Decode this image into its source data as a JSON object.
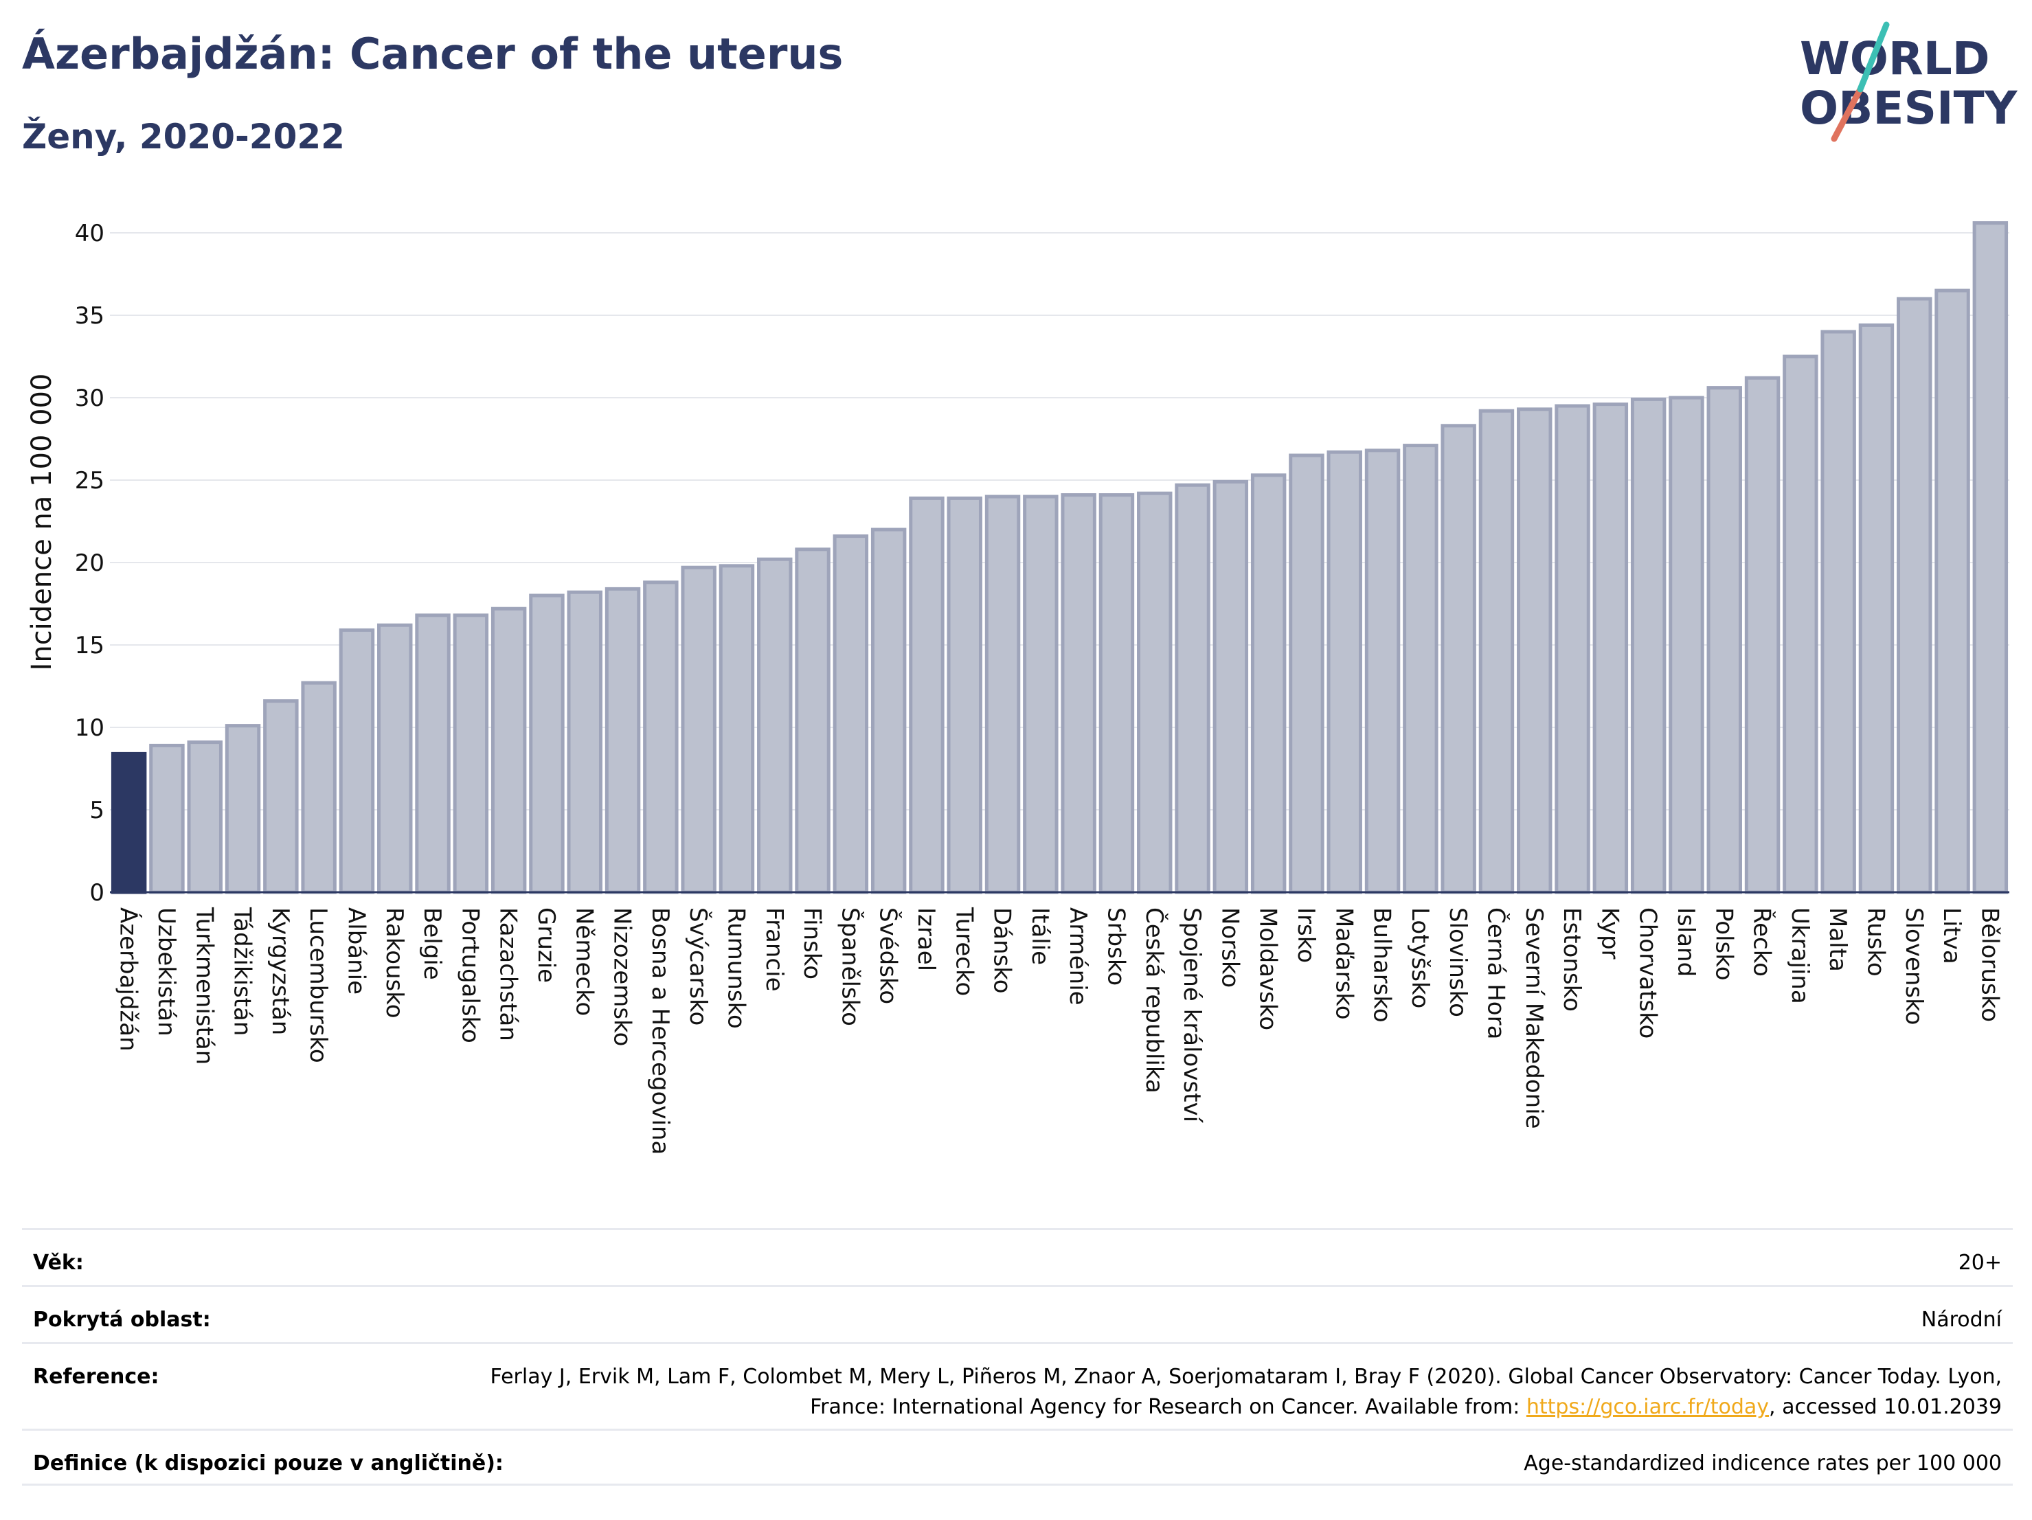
{
  "title": "Ázerbajdžán: Cancer of the uterus",
  "subtitle": "Ženy, 2020-2022",
  "logo": {
    "line1": "WORLD",
    "line2": "OBESITY"
  },
  "colors": {
    "highlight": "#2c3863",
    "bar": "#bcc1cf",
    "bar_border": "#9ea4ba",
    "title": "#2c3863",
    "grid": "#e5e7ec",
    "link": "#f0a91b"
  },
  "chart_data": {
    "type": "bar",
    "ylabel": "Incidence na 100 000",
    "xlabel": "",
    "ylim": [
      0,
      42
    ],
    "yticks": [
      0,
      5,
      10,
      15,
      20,
      25,
      30,
      35,
      40
    ],
    "grid": true,
    "highlight": "Ázerbajdžán",
    "categories": [
      "Ázerbajdžán",
      "Uzbekistán",
      "Turkmenistán",
      "Tádžikistán",
      "Kyrgyzstán",
      "Lucembursko",
      "Albánie",
      "Rakousko",
      "Belgie",
      "Portugalsko",
      "Kazachstán",
      "Gruzie",
      "Německo",
      "Nizozemsko",
      "Bosna a Hercegovina",
      "Švýcarsko",
      "Rumunsko",
      "Francie",
      "Finsko",
      "Španělsko",
      "Švédsko",
      "Izrael",
      "Turecko",
      "Dánsko",
      "Itálie",
      "Arménie",
      "Srbsko",
      "Česká republika",
      "Spojené království",
      "Norsko",
      "Moldavsko",
      "Irsko",
      "Maďarsko",
      "Bulharsko",
      "Lotyšsko",
      "Slovinsko",
      "Černá Hora",
      "Severní Makedonie",
      "Estonsko",
      "Kypr",
      "Chorvatsko",
      "Island",
      "Polsko",
      "Řecko",
      "Ukrajina",
      "Malta",
      "Rusko",
      "Slovensko",
      "Litva",
      "Bělorusko"
    ],
    "values": [
      8.4,
      8.9,
      9.1,
      10.1,
      11.6,
      12.7,
      15.9,
      16.2,
      16.8,
      16.8,
      17.2,
      18.0,
      18.2,
      18.4,
      18.8,
      19.7,
      19.8,
      20.2,
      20.8,
      21.6,
      22.0,
      23.9,
      23.9,
      24.0,
      24.0,
      24.1,
      24.1,
      24.2,
      24.7,
      24.9,
      25.3,
      26.5,
      26.7,
      26.8,
      27.1,
      28.3,
      29.2,
      29.3,
      29.5,
      29.6,
      29.9,
      30.0,
      30.6,
      31.2,
      32.5,
      34.0,
      34.4,
      36.0,
      36.5,
      40.6
    ]
  },
  "meta": {
    "age_label": "Věk:",
    "age_value": "20+",
    "area_label": "Pokrytá oblast:",
    "area_value": "Národní",
    "reference_label": "Reference:",
    "reference_text_1": "Ferlay J, Ervik M, Lam F, Colombet M, Mery L, Piñeros M, Znaor A, Soerjomataram I, Bray F (2020). Global Cancer Observatory: Cancer Today. Lyon, France: International Agency for Research on Cancer. Available from: ",
    "reference_link": "https://gco.iarc.fr/today",
    "reference_text_2": ", accessed 10.01.2039",
    "definition_label": "Definice (k dispozici pouze v angličtině):",
    "definition_value": "Age-standardized indicence rates per 100 000"
  }
}
